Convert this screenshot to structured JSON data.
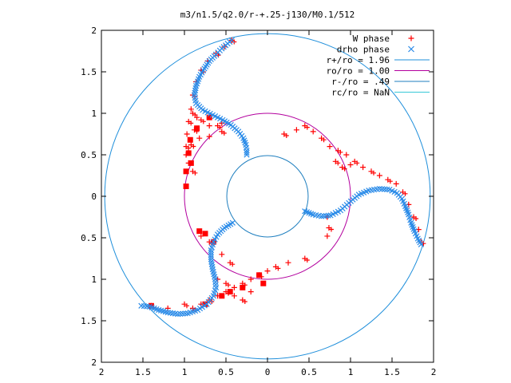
{
  "chart_data": {
    "type": "scatter",
    "title": "m3/n1.5/q2.0/r-+.25-j130/M0.1/512",
    "xlim": [
      -2,
      2
    ],
    "ylim": [
      -2,
      2
    ],
    "x_ticks": [
      -2,
      -1.5,
      -1,
      -0.5,
      0,
      0.5,
      1,
      1.5,
      2
    ],
    "y_ticks": [
      -2,
      -1.5,
      -1,
      -0.5,
      0,
      0.5,
      1,
      1.5,
      2
    ],
    "x_tick_labels": [
      "2",
      "1.5",
      "1",
      "0.5",
      "0",
      "0.5",
      "1",
      "1.5",
      "2"
    ],
    "y_tick_labels": [
      "2",
      "1.5",
      "1",
      "0.5",
      "0",
      "0.5",
      "1",
      "1.5",
      "2"
    ],
    "grid": false,
    "legend_position": "top-right",
    "series": [
      {
        "name": "W phase",
        "marker": "plus",
        "color": "#ff0000",
        "arms": [
          [
            [
              -0.43,
              1.88
            ],
            [
              -0.52,
              1.8
            ],
            [
              -0.62,
              1.72
            ],
            [
              -0.72,
              1.63
            ],
            [
              -0.8,
              1.52
            ],
            [
              -0.86,
              1.38
            ],
            [
              -0.9,
              1.22
            ],
            [
              -0.92,
              1.05
            ],
            [
              -0.95,
              0.9
            ],
            [
              -0.97,
              0.75
            ],
            [
              -0.98,
              0.6
            ],
            [
              -0.98,
              0.5
            ],
            [
              -0.9,
              1.0
            ],
            [
              -0.85,
              0.95
            ],
            [
              -0.8,
              0.92
            ],
            [
              -0.7,
              0.85
            ],
            [
              -0.6,
              0.85
            ],
            [
              -0.55,
              0.88
            ],
            [
              -0.88,
              0.8
            ],
            [
              -0.82,
              0.7
            ],
            [
              -0.92,
              0.62
            ],
            [
              -0.95,
              0.4
            ],
            [
              -0.9,
              0.3
            ],
            [
              -0.7,
              0.72
            ],
            [
              -0.55,
              0.78
            ]
          ],
          [
            [
              0.2,
              0.75
            ],
            [
              0.35,
              0.8
            ],
            [
              0.45,
              0.85
            ],
            [
              0.55,
              0.78
            ],
            [
              0.65,
              0.7
            ],
            [
              0.75,
              0.6
            ],
            [
              0.85,
              0.55
            ],
            [
              0.95,
              0.5
            ],
            [
              1.05,
              0.42
            ],
            [
              1.15,
              0.35
            ],
            [
              1.25,
              0.3
            ],
            [
              1.35,
              0.25
            ],
            [
              1.45,
              0.2
            ],
            [
              1.55,
              0.15
            ],
            [
              1.63,
              0.05
            ],
            [
              1.7,
              -0.1
            ],
            [
              1.76,
              -0.25
            ],
            [
              1.82,
              -0.4
            ],
            [
              1.85,
              -0.55
            ],
            [
              0.72,
              -0.25
            ],
            [
              0.74,
              -0.38
            ],
            [
              0.72,
              -0.48
            ],
            [
              0.9,
              0.35
            ],
            [
              1.0,
              0.38
            ],
            [
              0.82,
              0.42
            ]
          ],
          [
            [
              -0.9,
              -1.35
            ],
            [
              -0.8,
              -1.3
            ],
            [
              -0.7,
              -1.25
            ],
            [
              -0.6,
              -1.2
            ],
            [
              -0.5,
              -1.15
            ],
            [
              -0.4,
              -1.1
            ],
            [
              -0.3,
              -1.05
            ],
            [
              -0.2,
              -1.0
            ],
            [
              -0.1,
              -0.95
            ],
            [
              0.0,
              -0.9
            ],
            [
              0.1,
              -0.85
            ],
            [
              0.25,
              -0.8
            ],
            [
              0.45,
              -0.75
            ],
            [
              -0.6,
              -1.0
            ],
            [
              -0.5,
              -1.05
            ],
            [
              -0.4,
              -1.2
            ],
            [
              -0.3,
              -1.25
            ],
            [
              -0.2,
              -1.15
            ],
            [
              -0.45,
              -0.8
            ],
            [
              -0.55,
              -0.7
            ],
            [
              -0.7,
              -0.55
            ],
            [
              -0.8,
              -0.48
            ],
            [
              -1.0,
              -1.3
            ],
            [
              -1.2,
              -1.35
            ],
            [
              -1.4,
              -1.32
            ]
          ]
        ]
      },
      {
        "name": "drho phase",
        "marker": "cross",
        "color": "#2a8be8",
        "arms": [
          [
            [
              -0.43,
              1.88
            ],
            [
              -0.48,
              1.84
            ],
            [
              -0.55,
              1.78
            ],
            [
              -0.62,
              1.71
            ],
            [
              -0.7,
              1.63
            ],
            [
              -0.76,
              1.54
            ],
            [
              -0.82,
              1.44
            ],
            [
              -0.86,
              1.33
            ],
            [
              -0.88,
              1.22
            ],
            [
              -0.86,
              1.12
            ],
            [
              -0.78,
              1.04
            ],
            [
              -0.66,
              0.98
            ],
            [
              -0.54,
              0.92
            ],
            [
              -0.44,
              0.86
            ],
            [
              -0.35,
              0.78
            ],
            [
              -0.29,
              0.7
            ],
            [
              -0.26,
              0.62
            ],
            [
              -0.25,
              0.55
            ],
            [
              -0.25,
              0.5
            ]
          ],
          [
            [
              0.45,
              -0.18
            ],
            [
              0.55,
              -0.22
            ],
            [
              0.65,
              -0.24
            ],
            [
              0.76,
              -0.23
            ],
            [
              0.88,
              -0.17
            ],
            [
              0.98,
              -0.08
            ],
            [
              1.1,
              0.02
            ],
            [
              1.22,
              0.07
            ],
            [
              1.35,
              0.09
            ],
            [
              1.47,
              0.08
            ],
            [
              1.56,
              0.04
            ],
            [
              1.62,
              -0.03
            ],
            [
              1.66,
              -0.12
            ],
            [
              1.7,
              -0.22
            ],
            [
              1.73,
              -0.32
            ],
            [
              1.77,
              -0.42
            ],
            [
              1.81,
              -0.51
            ],
            [
              1.85,
              -0.58
            ]
          ],
          [
            [
              -0.42,
              -0.32
            ],
            [
              -0.52,
              -0.38
            ],
            [
              -0.6,
              -0.46
            ],
            [
              -0.65,
              -0.55
            ],
            [
              -0.68,
              -0.65
            ],
            [
              -0.68,
              -0.76
            ],
            [
              -0.66,
              -0.88
            ],
            [
              -0.63,
              -1.0
            ],
            [
              -0.62,
              -1.1
            ],
            [
              -0.65,
              -1.2
            ],
            [
              -0.73,
              -1.3
            ],
            [
              -0.84,
              -1.37
            ],
            [
              -0.96,
              -1.41
            ],
            [
              -1.08,
              -1.42
            ],
            [
              -1.2,
              -1.4
            ],
            [
              -1.31,
              -1.37
            ],
            [
              -1.42,
              -1.33
            ],
            [
              -1.52,
              -1.32
            ]
          ]
        ]
      },
      {
        "name": "r+/ro = 1.96",
        "type": "circle",
        "radius": 1.96,
        "color": "#1f8fdb"
      },
      {
        "name": "ro/ro = 1.00",
        "type": "circle",
        "radius": 1.0,
        "color": "#b3009e"
      },
      {
        "name": "r-/ro = .49",
        "type": "circle",
        "radius": 0.49,
        "color": "#1f7fbf"
      },
      {
        "name": "rc/ro = NaN",
        "type": "circle",
        "radius": null,
        "color": "#38c8d8"
      }
    ],
    "red_square_markers": [
      [
        -0.93,
        0.68
      ],
      [
        -0.95,
        0.52
      ],
      [
        -0.92,
        0.4
      ],
      [
        -0.98,
        0.12
      ],
      [
        -0.75,
        -0.45
      ],
      [
        -0.82,
        -0.42
      ],
      [
        -0.65,
        -0.55
      ],
      [
        -0.1,
        -0.95
      ],
      [
        -0.05,
        -1.05
      ],
      [
        -0.3,
        -1.1
      ],
      [
        -0.45,
        -1.15
      ],
      [
        -0.55,
        -1.2
      ],
      [
        -0.75,
        -1.3
      ],
      [
        -1.4,
        -1.32
      ],
      [
        -0.98,
        0.3
      ],
      [
        -0.85,
        0.82
      ],
      [
        -0.7,
        0.95
      ]
    ]
  }
}
